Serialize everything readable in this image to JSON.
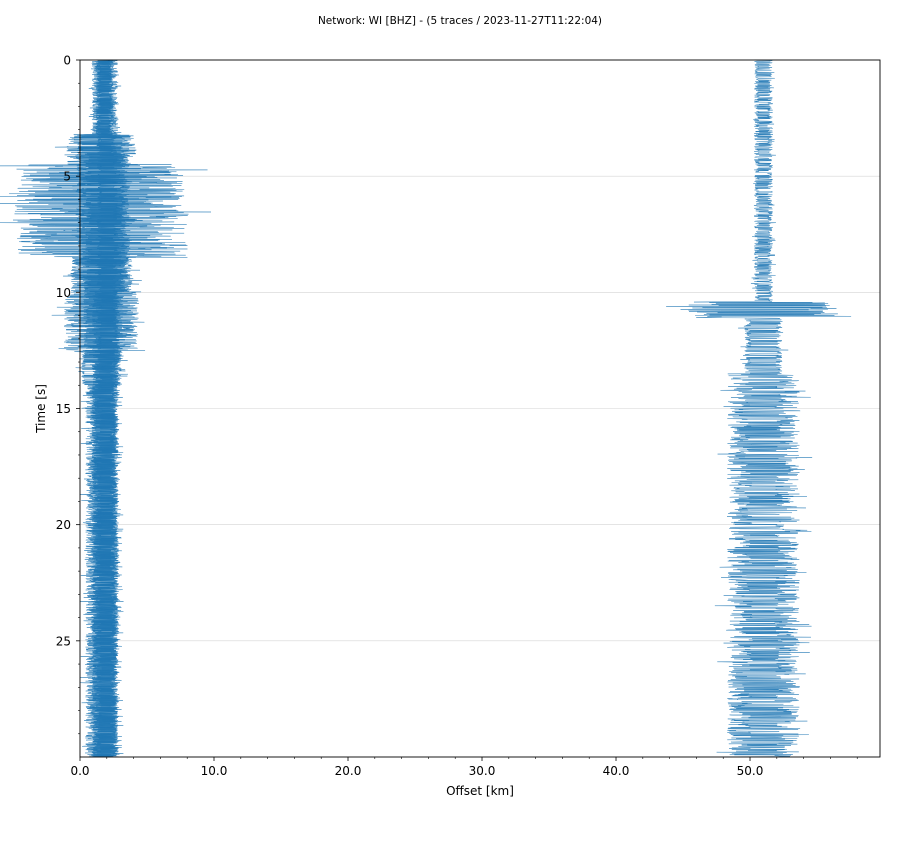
{
  "chart_data": {
    "type": "line",
    "title": "Network: WI [BHZ] - (5 traces / 2023-11-27T11:22:04)",
    "xlabel": "Offset [km]",
    "ylabel": "Time [s]",
    "xlim": [
      0,
      59.7
    ],
    "ylim": [
      0,
      30
    ],
    "y_inverted": true,
    "grid": "horizontal",
    "trace_color": "#1f77b4",
    "x_ticks": [
      {
        "value": 0,
        "label": "0.0"
      },
      {
        "value": 10,
        "label": "10.0"
      },
      {
        "value": 20,
        "label": "20.0"
      },
      {
        "value": 30,
        "label": "30.0"
      },
      {
        "value": 40,
        "label": "40.0"
      },
      {
        "value": 50,
        "label": "50.0"
      }
    ],
    "y_ticks": [
      {
        "value": 0,
        "label": "0"
      },
      {
        "value": 5,
        "label": "5"
      },
      {
        "value": 10,
        "label": "10"
      },
      {
        "value": 15,
        "label": "15"
      },
      {
        "value": 20,
        "label": "20"
      },
      {
        "value": 25,
        "label": "25"
      }
    ],
    "series": [
      {
        "offset_km": 1.6,
        "bursts": [
          [
            0,
            3.2,
            0.5,
            0.7
          ],
          [
            3.2,
            4.5,
            1.4,
            2.6
          ],
          [
            4.5,
            8.5,
            2.6,
            6.5
          ],
          [
            8.5,
            10,
            1.8,
            2.3
          ],
          [
            10,
            12.5,
            1.6,
            2.8
          ],
          [
            12.5,
            14,
            1.2,
            1.5
          ],
          [
            14,
            30,
            0.6,
            1.2
          ]
        ]
      },
      {
        "offset_km": 1.75,
        "bursts": [
          [
            0,
            3.2,
            0.4,
            0.6
          ],
          [
            3.2,
            9.5,
            1.2,
            2
          ],
          [
            9.5,
            13,
            1,
            1.5
          ],
          [
            13,
            30,
            0.5,
            0.9
          ]
        ]
      },
      {
        "offset_km": 1.9,
        "bursts": [
          [
            0,
            4,
            0.4,
            0.6
          ],
          [
            4,
            10,
            1,
            1.5
          ],
          [
            10,
            30,
            0.5,
            1.0
          ]
        ]
      },
      {
        "offset_km": 2.05,
        "bursts": [
          [
            0,
            30,
            0.4,
            0.8
          ]
        ]
      },
      {
        "offset_km": 51.0,
        "bursts": [
          [
            0,
            10.4,
            0.3,
            0.7
          ],
          [
            10.4,
            11.1,
            3,
            5.6
          ],
          [
            11.1,
            13.5,
            0.9,
            1.4
          ],
          [
            13.5,
            30,
            0.8,
            2.7
          ]
        ]
      }
    ]
  }
}
